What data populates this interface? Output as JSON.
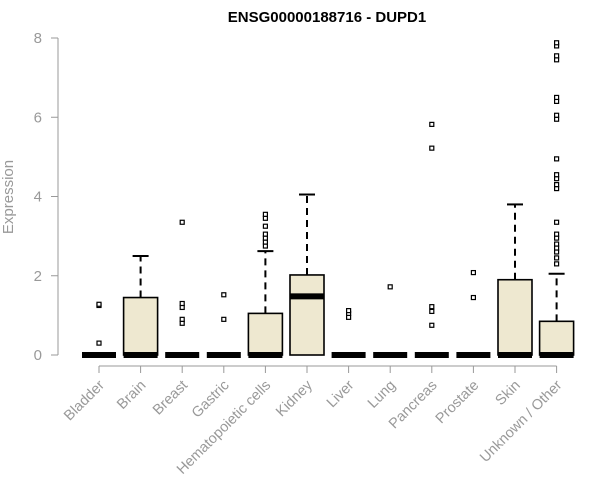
{
  "chart_data": {
    "type": "boxplot",
    "title": "ENSG00000188716 - DUPD1",
    "xlabel": "",
    "ylabel": "Expression",
    "ylim": [
      0,
      8
    ],
    "yticks": [
      0,
      2,
      4,
      6,
      8
    ],
    "grid": false,
    "legend": "none",
    "box_fill": "#EEE8D0",
    "box_stroke": "#000000",
    "axis_color": "#999999",
    "categories": [
      "Bladder",
      "Brain",
      "Breast",
      "Gastric",
      "Hematopoietic cells",
      "Kidney",
      "Liver",
      "Lung",
      "Pancreas",
      "Prostate",
      "Skin",
      "Unknown / Other"
    ],
    "boxes": [
      {
        "category": "Bladder",
        "q1": 0,
        "median": 0,
        "q3": 0,
        "whisker_low": 0,
        "whisker_high": 0,
        "outliers": [
          0.3,
          1.25,
          1.28
        ]
      },
      {
        "category": "Brain",
        "q1": 0,
        "median": 0,
        "q3": 1.45,
        "whisker_low": 0,
        "whisker_high": 2.5,
        "outliers": []
      },
      {
        "category": "Breast",
        "q1": 0,
        "median": 0,
        "q3": 0,
        "whisker_low": 0,
        "whisker_high": 0,
        "outliers": [
          0.8,
          0.9,
          1.2,
          1.3,
          3.35
        ]
      },
      {
        "category": "Gastric",
        "q1": 0,
        "median": 0,
        "q3": 0,
        "whisker_low": 0,
        "whisker_high": 0,
        "outliers": [
          0.9,
          1.52
        ]
      },
      {
        "category": "Hematopoietic cells",
        "q1": 0,
        "median": 0,
        "q3": 1.05,
        "whisker_low": 0,
        "whisker_high": 2.62,
        "outliers": [
          2.75,
          2.85,
          2.95,
          3.05,
          3.25,
          3.45,
          3.55
        ]
      },
      {
        "category": "Kidney",
        "q1": 0,
        "median": 1.48,
        "q3": 2.02,
        "whisker_low": 0,
        "whisker_high": 4.05,
        "outliers": []
      },
      {
        "category": "Liver",
        "q1": 0,
        "median": 0,
        "q3": 0,
        "whisker_low": 0,
        "whisker_high": 0,
        "outliers": [
          0.95,
          1.05,
          1.12
        ]
      },
      {
        "category": "Lung",
        "q1": 0,
        "median": 0,
        "q3": 0,
        "whisker_low": 0,
        "whisker_high": 0,
        "outliers": [
          1.72
        ]
      },
      {
        "category": "Pancreas",
        "q1": 0,
        "median": 0,
        "q3": 0,
        "whisker_low": 0,
        "whisker_high": 0,
        "outliers": [
          0.75,
          1.1,
          1.22,
          5.22,
          5.82
        ]
      },
      {
        "category": "Prostate",
        "q1": 0,
        "median": 0,
        "q3": 0,
        "whisker_low": 0,
        "whisker_high": 0,
        "outliers": [
          1.45,
          2.08
        ]
      },
      {
        "category": "Skin",
        "q1": 0,
        "median": 0,
        "q3": 1.9,
        "whisker_low": 0,
        "whisker_high": 3.8,
        "outliers": []
      },
      {
        "category": "Unknown / Other",
        "q1": 0,
        "median": 0,
        "q3": 0.85,
        "whisker_low": 0,
        "whisker_high": 2.05,
        "outliers": [
          2.3,
          2.45,
          2.6,
          2.7,
          2.8,
          2.95,
          3.05,
          3.35,
          4.2,
          4.3,
          4.45,
          4.55,
          4.95,
          5.95,
          6.05,
          6.4,
          6.5,
          7.45,
          7.55,
          7.8,
          7.88
        ]
      }
    ]
  }
}
